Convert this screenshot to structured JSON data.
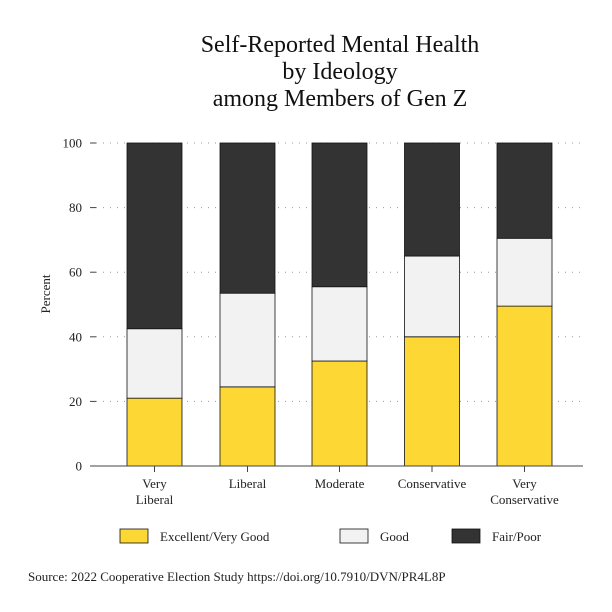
{
  "chart_data": {
    "type": "bar",
    "stacked": true,
    "title_lines": [
      "Self-Reported Mental Health",
      "by Ideology",
      "among Members of Gen Z"
    ],
    "ylabel": "Percent",
    "xlabel": "",
    "ylim": [
      0,
      100
    ],
    "yticks": [
      0,
      20,
      40,
      60,
      80,
      100
    ],
    "grid": true,
    "categories": [
      [
        "Very",
        "Liberal"
      ],
      [
        "Liberal"
      ],
      [
        "Moderate"
      ],
      [
        "Conservative"
      ],
      [
        "Very",
        "Conservative"
      ]
    ],
    "series": [
      {
        "name": "Excellent/Very Good",
        "color": "#FDD835",
        "values": [
          21,
          24.5,
          32.5,
          40,
          49.5
        ]
      },
      {
        "name": "Good",
        "color": "#F2F2F2",
        "values": [
          21.5,
          29,
          23,
          25,
          21
        ]
      },
      {
        "name": "Fair/Poor",
        "color": "#333333",
        "values": [
          57.5,
          46.5,
          44.5,
          35,
          29.5
        ]
      }
    ],
    "legend_position": "bottom",
    "source": "Source: 2022 Cooperative Election Study https://doi.org/10.7910/DVN/PR4L8P"
  }
}
